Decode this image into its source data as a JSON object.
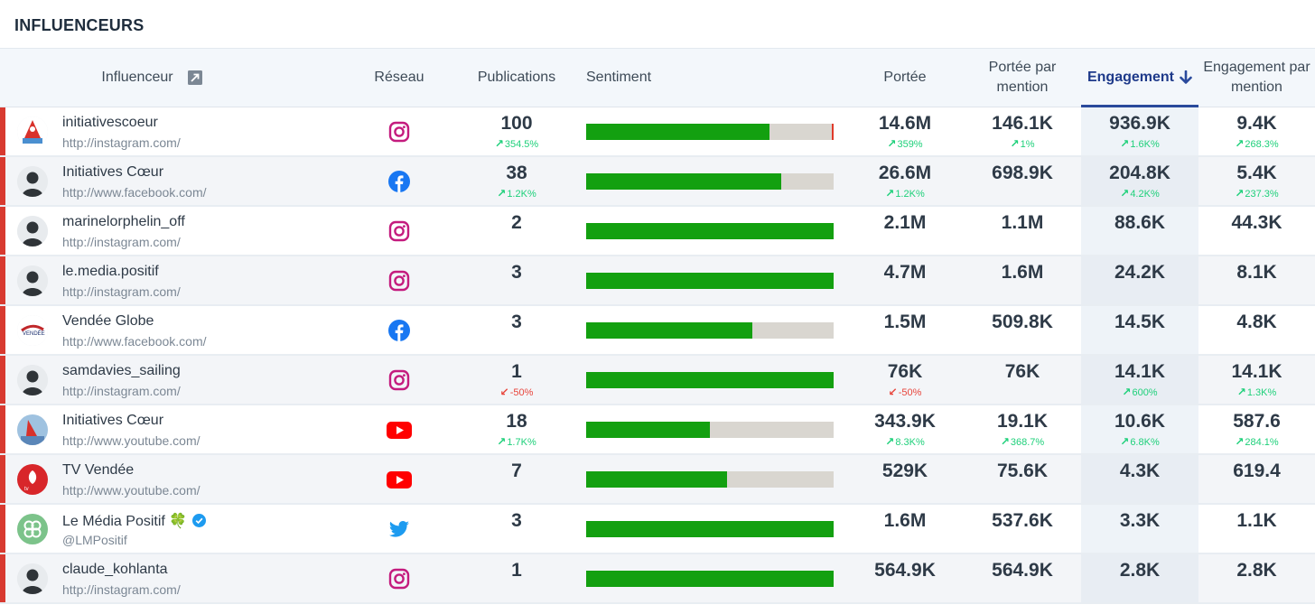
{
  "title": "INFLUENCEURS",
  "colors": {
    "positive": "#13a010",
    "neutral": "#d9d6d0",
    "negative": "#e03a2a",
    "delta_up": "#1ed07a",
    "delta_down": "#e8453c",
    "accent": "#1e3a8a",
    "row_marker": "#d83a30"
  },
  "columns": {
    "influencer": "Influenceur",
    "network": "Réseau",
    "publications": "Publications",
    "sentiment": "Sentiment",
    "reach": "Portée",
    "reach_per_mention_1": "Portée par",
    "reach_per_mention_2": "mention",
    "engagement": "Engagement",
    "engagement_per_mention_1": "Engagement par",
    "engagement_per_mention_2": "mention"
  },
  "sort": {
    "column": "engagement",
    "direction": "descending",
    "icon": "arrow-down-icon"
  },
  "rows": [
    {
      "name": "initiativescoeur",
      "url": "http://instagram.com/",
      "network": "instagram",
      "avatar": "initiatives-coeur-logo",
      "publications": "100",
      "publications_delta": "354.5%",
      "publications_dir": "up",
      "sentiment": {
        "positive": 0.74,
        "neutral": 0.25,
        "negative": 0.01
      },
      "reach": "14.6M",
      "reach_delta": "359%",
      "reach_dir": "up",
      "reach_per_mention": "146.1K",
      "reach_per_mention_delta": "1%",
      "reach_per_mention_dir": "up",
      "engagement": "936.9K",
      "engagement_delta": "1.6K%",
      "engagement_dir": "up",
      "engagement_per_mention": "9.4K",
      "engagement_per_mention_delta": "268.3%",
      "engagement_per_mention_dir": "up"
    },
    {
      "name": "Initiatives Cœur",
      "url": "http://www.facebook.com/",
      "network": "facebook",
      "avatar": "default-avatar",
      "publications": "38",
      "publications_delta": "1.2K%",
      "publications_dir": "up",
      "sentiment": {
        "positive": 0.79,
        "neutral": 0.21,
        "negative": 0
      },
      "reach": "26.6M",
      "reach_delta": "1.2K%",
      "reach_dir": "up",
      "reach_per_mention": "698.9K",
      "reach_per_mention_delta": "",
      "reach_per_mention_dir": "",
      "engagement": "204.8K",
      "engagement_delta": "4.2K%",
      "engagement_dir": "up",
      "engagement_per_mention": "5.4K",
      "engagement_per_mention_delta": "237.3%",
      "engagement_per_mention_dir": "up"
    },
    {
      "name": "marinelorphelin_off",
      "url": "http://instagram.com/",
      "network": "instagram",
      "avatar": "default-avatar",
      "publications": "2",
      "publications_delta": "",
      "publications_dir": "",
      "sentiment": {
        "positive": 1.0,
        "neutral": 0,
        "negative": 0
      },
      "reach": "2.1M",
      "reach_delta": "",
      "reach_dir": "",
      "reach_per_mention": "1.1M",
      "reach_per_mention_delta": "",
      "reach_per_mention_dir": "",
      "engagement": "88.6K",
      "engagement_delta": "",
      "engagement_dir": "",
      "engagement_per_mention": "44.3K",
      "engagement_per_mention_delta": "",
      "engagement_per_mention_dir": ""
    },
    {
      "name": "le.media.positif",
      "url": "http://instagram.com/",
      "network": "instagram",
      "avatar": "default-avatar",
      "publications": "3",
      "publications_delta": "",
      "publications_dir": "",
      "sentiment": {
        "positive": 1.0,
        "neutral": 0,
        "negative": 0
      },
      "reach": "4.7M",
      "reach_delta": "",
      "reach_dir": "",
      "reach_per_mention": "1.6M",
      "reach_per_mention_delta": "",
      "reach_per_mention_dir": "",
      "engagement": "24.2K",
      "engagement_delta": "",
      "engagement_dir": "",
      "engagement_per_mention": "8.1K",
      "engagement_per_mention_delta": "",
      "engagement_per_mention_dir": ""
    },
    {
      "name": "Vendée Globe",
      "url": "http://www.facebook.com/",
      "network": "facebook",
      "avatar": "vendee-globe-logo",
      "publications": "3",
      "publications_delta": "",
      "publications_dir": "",
      "sentiment": {
        "positive": 0.67,
        "neutral": 0.33,
        "negative": 0
      },
      "reach": "1.5M",
      "reach_delta": "",
      "reach_dir": "",
      "reach_per_mention": "509.8K",
      "reach_per_mention_delta": "",
      "reach_per_mention_dir": "",
      "engagement": "14.5K",
      "engagement_delta": "",
      "engagement_dir": "",
      "engagement_per_mention": "4.8K",
      "engagement_per_mention_delta": "",
      "engagement_per_mention_dir": ""
    },
    {
      "name": "samdavies_sailing",
      "url": "http://instagram.com/",
      "network": "instagram",
      "avatar": "default-avatar",
      "publications": "1",
      "publications_delta": "-50%",
      "publications_dir": "down",
      "sentiment": {
        "positive": 1.0,
        "neutral": 0,
        "negative": 0
      },
      "reach": "76K",
      "reach_delta": "-50%",
      "reach_dir": "down",
      "reach_per_mention": "76K",
      "reach_per_mention_delta": "",
      "reach_per_mention_dir": "",
      "engagement": "14.1K",
      "engagement_delta": "600%",
      "engagement_dir": "up",
      "engagement_per_mention": "14.1K",
      "engagement_per_mention_delta": "1.3K%",
      "engagement_per_mention_dir": "up"
    },
    {
      "name": "Initiatives Cœur",
      "url": "http://www.youtube.com/",
      "network": "youtube",
      "avatar": "initiatives-coeur-boat",
      "publications": "18",
      "publications_delta": "1.7K%",
      "publications_dir": "up",
      "sentiment": {
        "positive": 0.5,
        "neutral": 0.5,
        "negative": 0
      },
      "reach": "343.9K",
      "reach_delta": "8.3K%",
      "reach_dir": "up",
      "reach_per_mention": "19.1K",
      "reach_per_mention_delta": "368.7%",
      "reach_per_mention_dir": "up",
      "engagement": "10.6K",
      "engagement_delta": "6.8K%",
      "engagement_dir": "up",
      "engagement_per_mention": "587.6",
      "engagement_per_mention_delta": "284.1%",
      "engagement_per_mention_dir": "up"
    },
    {
      "name": "TV Vendée",
      "url": "http://www.youtube.com/",
      "network": "youtube",
      "avatar": "tv-vendee-logo",
      "publications": "7",
      "publications_delta": "",
      "publications_dir": "",
      "sentiment": {
        "positive": 0.57,
        "neutral": 0.43,
        "negative": 0
      },
      "reach": "529K",
      "reach_delta": "",
      "reach_dir": "",
      "reach_per_mention": "75.6K",
      "reach_per_mention_delta": "",
      "reach_per_mention_dir": "",
      "engagement": "4.3K",
      "engagement_delta": "",
      "engagement_dir": "",
      "engagement_per_mention": "619.4",
      "engagement_per_mention_delta": "",
      "engagement_per_mention_dir": ""
    },
    {
      "name": "Le Média Positif 🍀",
      "url": "@LMPositif",
      "network": "twitter",
      "avatar": "clover-logo",
      "verified": true,
      "publications": "3",
      "publications_delta": "",
      "publications_dir": "",
      "sentiment": {
        "positive": 1.0,
        "neutral": 0,
        "negative": 0
      },
      "reach": "1.6M",
      "reach_delta": "",
      "reach_dir": "",
      "reach_per_mention": "537.6K",
      "reach_per_mention_delta": "",
      "reach_per_mention_dir": "",
      "engagement": "3.3K",
      "engagement_delta": "",
      "engagement_dir": "",
      "engagement_per_mention": "1.1K",
      "engagement_per_mention_delta": "",
      "engagement_per_mention_dir": ""
    },
    {
      "name": "claude_kohlanta",
      "url": "http://instagram.com/",
      "network": "instagram",
      "avatar": "default-avatar",
      "publications": "1",
      "publications_delta": "",
      "publications_dir": "",
      "sentiment": {
        "positive": 1.0,
        "neutral": 0,
        "negative": 0
      },
      "reach": "564.9K",
      "reach_delta": "",
      "reach_dir": "",
      "reach_per_mention": "564.9K",
      "reach_per_mention_delta": "",
      "reach_per_mention_dir": "",
      "engagement": "2.8K",
      "engagement_delta": "",
      "engagement_dir": "",
      "engagement_per_mention": "2.8K",
      "engagement_per_mention_delta": "",
      "engagement_per_mention_dir": ""
    }
  ]
}
